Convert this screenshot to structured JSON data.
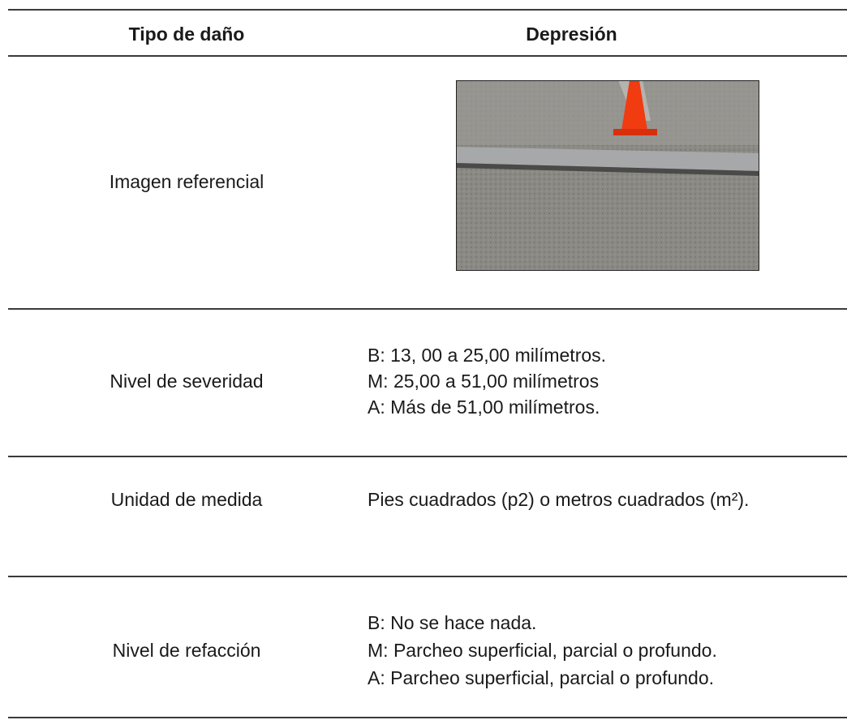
{
  "table": {
    "header": [
      "Tipo de daño",
      "Depresión"
    ],
    "rows": [
      {
        "label": "Imagen referencial"
      },
      {
        "label": "Nivel de severidad",
        "lines": [
          "B: 13, 00 a 25,00 milímetros.",
          "M: 25,00 a 51,00 milímetros",
          "A: Más de 51,00 milímetros."
        ]
      },
      {
        "label": "Unidad de medida",
        "text": "Pies cuadrados (p2) o metros cuadrados (m²)."
      },
      {
        "label": "Nivel de refacción",
        "lines": [
          "B: No se hace nada.",
          "M: Parcheo superficial, parcial o profundo.",
          "A: Parcheo superficial, parcial o profundo."
        ]
      }
    ]
  }
}
